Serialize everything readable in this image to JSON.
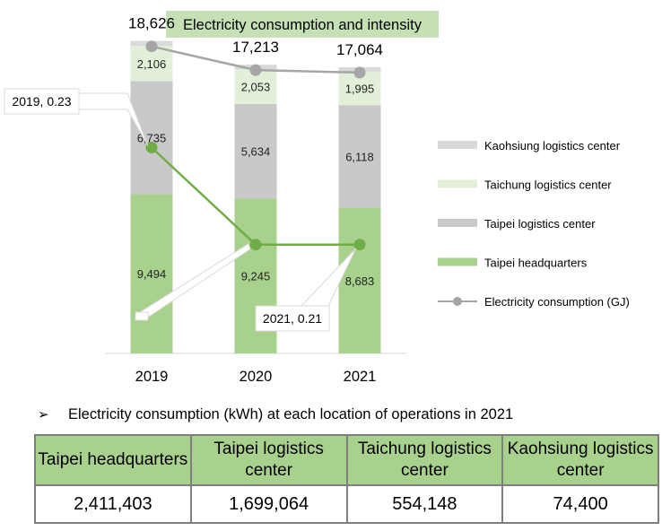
{
  "chart_data": {
    "type": "bar",
    "title": "Electricity consumption and intensity",
    "categories": [
      "2019",
      "2020",
      "2021"
    ],
    "series": [
      {
        "name": "Taipei headquarters",
        "values": [
          9494,
          9245,
          8683
        ],
        "color": "#a9d18e",
        "labels": [
          "9,494",
          "9,245",
          "8,683"
        ]
      },
      {
        "name": "Taipei logistics center",
        "values": [
          6735,
          5634,
          6118
        ],
        "color": "#c9c9c9",
        "labels": [
          "6,735",
          "5,634",
          "6,118"
        ]
      },
      {
        "name": "Taichung logistics center",
        "values": [
          2106,
          2053,
          1995
        ],
        "color": "#e2f0d9",
        "labels": [
          "2,106",
          "2,053",
          "1,995"
        ]
      },
      {
        "name": "Kaohsiung logistics center",
        "values": [
          291,
          281,
          268
        ],
        "color": "#d9d9d9",
        "labels": [
          "",
          "",
          ""
        ]
      }
    ],
    "totals": {
      "name": "Electricity consumption (GJ)",
      "values": [
        18626,
        17213,
        17064
      ],
      "labels": [
        "18,626",
        "17,213",
        "17,064"
      ],
      "color": "#a6a6a6"
    },
    "intensity": {
      "values": [
        0.23,
        0.21,
        0.21
      ],
      "color": "#70ad47",
      "callouts": [
        {
          "category": "2019",
          "text": "2019, 0.23"
        },
        {
          "category": "2021",
          "text": "2021, 0.21"
        }
      ]
    },
    "ylim": [
      0,
      20000
    ],
    "legend": [
      {
        "name": "Kaohsiung logistics center",
        "kind": "box",
        "color": "#d9d9d9"
      },
      {
        "name": "Taichung logistics center",
        "kind": "box",
        "color": "#e2f0d9"
      },
      {
        "name": "Taipei logistics center",
        "kind": "box",
        "color": "#c9c9c9"
      },
      {
        "name": "Taipei headquarters",
        "kind": "box",
        "color": "#a9d18e"
      },
      {
        "name": "Electricity consumption (GJ)",
        "kind": "line",
        "color": "#a6a6a6"
      }
    ],
    "legend_position": "right",
    "grid": false
  },
  "bullet": {
    "marker": "➢",
    "text": "Electricity consumption (kWh) at each location of operations in 2021"
  },
  "table": {
    "headers": [
      "Taipei headquarters",
      "Taipei logistics center",
      "Taichung logistics center",
      "Kaohsiung logistics center"
    ],
    "values": [
      "2,411,403",
      "1,699,064",
      "554,148",
      "74,400"
    ]
  }
}
